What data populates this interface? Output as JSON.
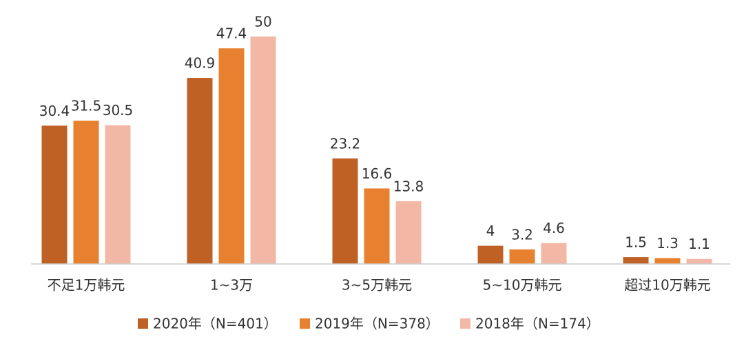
{
  "chart_data": {
    "type": "bar",
    "categories": [
      "不足1万韩元",
      "1~3万",
      "3~5万韩元",
      "5~10万韩元",
      "超过10万韩元"
    ],
    "series": [
      {
        "name": "2020年（N=401）",
        "color": "#bf6024",
        "values": [
          30.4,
          40.9,
          23.2,
          4,
          1.5
        ]
      },
      {
        "name": "2019年（N=378）",
        "color": "#e8812f",
        "values": [
          31.5,
          47.4,
          16.6,
          3.2,
          1.3
        ]
      },
      {
        "name": "2018年（N=174）",
        "color": "#f3b8a5",
        "values": [
          30.5,
          50,
          13.8,
          4.6,
          1.1
        ]
      }
    ],
    "ylim": [
      0,
      50
    ]
  }
}
